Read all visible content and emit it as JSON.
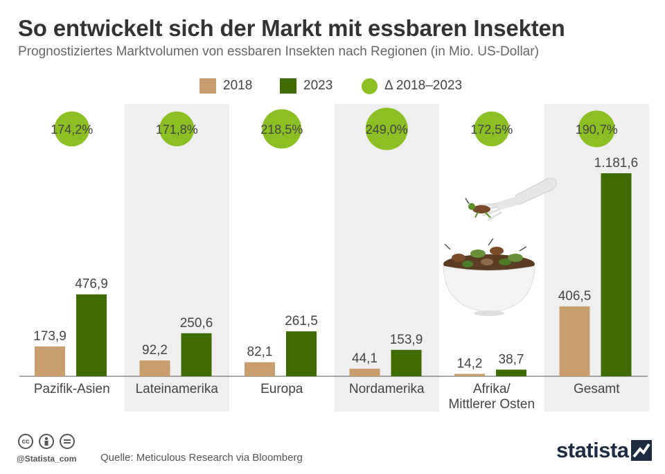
{
  "header": {
    "title": "So entwickelt sich der Markt mit essbaren Insekten",
    "subtitle": "Prognostiziertes Marktvolumen von essbaren Insekten nach Regionen (in Mio. US-Dollar)"
  },
  "legend": {
    "items": [
      {
        "label": "2018",
        "color": "#c99e6e",
        "shape": "square"
      },
      {
        "label": "2023",
        "color": "#3f6b00",
        "shape": "square"
      },
      {
        "label": "Δ 2018–2023",
        "color": "#8bbf23",
        "shape": "circle"
      }
    ]
  },
  "chart_data": {
    "type": "bar",
    "title": "So entwickelt sich der Markt mit essbaren Insekten",
    "subtitle": "Prognostiziertes Marktvolumen von essbaren Insekten nach Regionen (in Mio. US-Dollar)",
    "categories": [
      "Pazifik-Asien",
      "Lateinamerika",
      "Europa",
      "Nordamerika",
      "Afrika/\nMittlerer Osten",
      "Gesamt"
    ],
    "series": [
      {
        "name": "2018",
        "color": "#c99e6e",
        "values": [
          173.9,
          92.2,
          82.1,
          44.1,
          14.2,
          406.5
        ],
        "labels": [
          "173,9",
          "92,2",
          "82,1",
          "44,1",
          "14,2",
          "406,5"
        ]
      },
      {
        "name": "2023",
        "color": "#3f6b00",
        "values": [
          476.9,
          250.6,
          261.5,
          153.9,
          38.7,
          1181.6
        ],
        "labels": [
          "476,9",
          "250,6",
          "261,5",
          "153,9",
          "38,7",
          "1.181,6"
        ]
      }
    ],
    "change": {
      "name": "Δ 2018–2023",
      "color": "#8bbf23",
      "values": [
        174.2,
        171.8,
        218.5,
        249.0,
        172.5,
        190.7
      ],
      "labels": [
        "174,2%",
        "171,8%",
        "218,5%",
        "249,0%",
        "172,5%",
        "190,7%"
      ]
    },
    "ylim": [
      0,
      1300
    ],
    "xlabel": "",
    "ylabel": "",
    "legend_position": "top-center",
    "shaded_columns": [
      1,
      3,
      5
    ]
  },
  "footer": {
    "handle": "@Statista_com",
    "source": "Quelle: Meticulous Research via Bloomberg",
    "brand": "statista"
  }
}
